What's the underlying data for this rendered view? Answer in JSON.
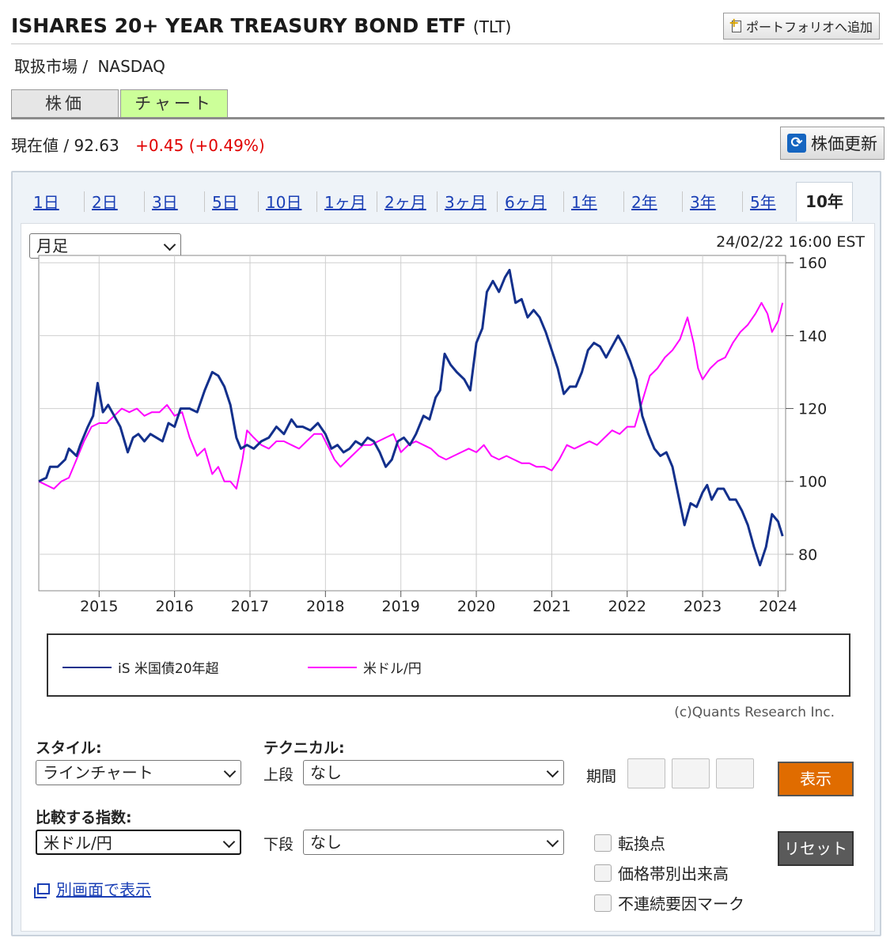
{
  "header": {
    "title": "ISHARES 20+ YEAR TREASURY BOND ETF",
    "ticker": "(TLT)",
    "portfolio_button": "ポートフォリオへ追加",
    "market_label": "取扱市場 /",
    "market_value": "NASDAQ"
  },
  "tabs": [
    {
      "label": "株価",
      "active": false
    },
    {
      "label": "チャート",
      "active": true
    }
  ],
  "quote": {
    "label": "現在値 /",
    "price": "92.63",
    "change": "+0.45",
    "change_pct": "(+0.49%)",
    "refresh_button": "株価更新"
  },
  "periods": [
    {
      "label": "1日"
    },
    {
      "label": "2日"
    },
    {
      "label": "3日"
    },
    {
      "label": "5日"
    },
    {
      "label": "10日"
    },
    {
      "label": "1ヶ月"
    },
    {
      "label": "2ヶ月"
    },
    {
      "label": "3ヶ月"
    },
    {
      "label": "6ヶ月"
    },
    {
      "label": "1年"
    },
    {
      "label": "2年"
    },
    {
      "label": "3年"
    },
    {
      "label": "5年"
    },
    {
      "label": "10年",
      "active": true
    }
  ],
  "chart_options": {
    "interval_select": "月足",
    "timestamp": "24/02/22 16:00 EST",
    "copyright": "(c)Quants Research Inc."
  },
  "chart_data": {
    "type": "line",
    "ylim": [
      70,
      162
    ],
    "y_ticks": [
      160,
      140,
      120,
      100,
      80
    ],
    "x_ticks": [
      "2015",
      "2016",
      "2017",
      "2018",
      "2019",
      "2020",
      "2021",
      "2022",
      "2023",
      "2024"
    ],
    "x_range": [
      2014.2,
      2024.1
    ],
    "legend_position": "bottom",
    "grid": true,
    "series": [
      {
        "name": "iS 米国債20年超",
        "color": "#13308c",
        "points": [
          [
            2014.2,
            100
          ],
          [
            2014.3,
            101
          ],
          [
            2014.35,
            104
          ],
          [
            2014.45,
            104
          ],
          [
            2014.55,
            106
          ],
          [
            2014.6,
            109
          ],
          [
            2014.7,
            107
          ],
          [
            2014.75,
            110
          ],
          [
            2014.85,
            115
          ],
          [
            2014.92,
            118
          ],
          [
            2014.98,
            127
          ],
          [
            2015.05,
            119
          ],
          [
            2015.12,
            121
          ],
          [
            2015.2,
            118
          ],
          [
            2015.28,
            115
          ],
          [
            2015.38,
            108
          ],
          [
            2015.45,
            112
          ],
          [
            2015.52,
            113
          ],
          [
            2015.6,
            111
          ],
          [
            2015.68,
            113
          ],
          [
            2015.76,
            112
          ],
          [
            2015.84,
            111
          ],
          [
            2015.92,
            116
          ],
          [
            2016.0,
            115
          ],
          [
            2016.08,
            120
          ],
          [
            2016.2,
            120
          ],
          [
            2016.3,
            119
          ],
          [
            2016.4,
            125
          ],
          [
            2016.5,
            130
          ],
          [
            2016.58,
            129
          ],
          [
            2016.66,
            126
          ],
          [
            2016.74,
            121
          ],
          [
            2016.82,
            112
          ],
          [
            2016.88,
            109
          ],
          [
            2016.96,
            110
          ],
          [
            2017.05,
            109
          ],
          [
            2017.15,
            111
          ],
          [
            2017.25,
            112
          ],
          [
            2017.35,
            115
          ],
          [
            2017.45,
            113
          ],
          [
            2017.55,
            117
          ],
          [
            2017.62,
            115
          ],
          [
            2017.7,
            115
          ],
          [
            2017.8,
            114
          ],
          [
            2017.9,
            116
          ],
          [
            2018.0,
            113
          ],
          [
            2018.08,
            109
          ],
          [
            2018.16,
            110
          ],
          [
            2018.24,
            108
          ],
          [
            2018.32,
            109
          ],
          [
            2018.4,
            111
          ],
          [
            2018.48,
            110
          ],
          [
            2018.56,
            112
          ],
          [
            2018.64,
            111
          ],
          [
            2018.72,
            108
          ],
          [
            2018.8,
            104
          ],
          [
            2018.88,
            106
          ],
          [
            2018.96,
            111
          ],
          [
            2019.04,
            112
          ],
          [
            2019.12,
            110
          ],
          [
            2019.2,
            113
          ],
          [
            2019.3,
            118
          ],
          [
            2019.38,
            117
          ],
          [
            2019.46,
            123
          ],
          [
            2019.52,
            125
          ],
          [
            2019.58,
            135
          ],
          [
            2019.66,
            132
          ],
          [
            2019.74,
            130
          ],
          [
            2019.84,
            128
          ],
          [
            2019.92,
            125
          ],
          [
            2020.0,
            138
          ],
          [
            2020.08,
            142
          ],
          [
            2020.14,
            152
          ],
          [
            2020.22,
            155
          ],
          [
            2020.3,
            152
          ],
          [
            2020.38,
            156
          ],
          [
            2020.44,
            158
          ],
          [
            2020.52,
            149
          ],
          [
            2020.6,
            150
          ],
          [
            2020.68,
            145
          ],
          [
            2020.76,
            147
          ],
          [
            2020.84,
            145
          ],
          [
            2020.92,
            141
          ],
          [
            2021.0,
            136
          ],
          [
            2021.08,
            131
          ],
          [
            2021.16,
            124
          ],
          [
            2021.24,
            126
          ],
          [
            2021.32,
            126
          ],
          [
            2021.4,
            130
          ],
          [
            2021.48,
            136
          ],
          [
            2021.56,
            138
          ],
          [
            2021.64,
            137
          ],
          [
            2021.72,
            134
          ],
          [
            2021.8,
            137
          ],
          [
            2021.88,
            140
          ],
          [
            2021.96,
            137
          ],
          [
            2022.04,
            133
          ],
          [
            2022.12,
            128
          ],
          [
            2022.2,
            118
          ],
          [
            2022.28,
            113
          ],
          [
            2022.36,
            109
          ],
          [
            2022.44,
            107
          ],
          [
            2022.52,
            108
          ],
          [
            2022.6,
            104
          ],
          [
            2022.68,
            96
          ],
          [
            2022.76,
            88
          ],
          [
            2022.84,
            94
          ],
          [
            2022.92,
            93
          ],
          [
            2023.0,
            97
          ],
          [
            2023.06,
            99
          ],
          [
            2023.12,
            95
          ],
          [
            2023.2,
            98
          ],
          [
            2023.28,
            98
          ],
          [
            2023.36,
            95
          ],
          [
            2023.44,
            95
          ],
          [
            2023.52,
            92
          ],
          [
            2023.6,
            88
          ],
          [
            2023.68,
            82
          ],
          [
            2023.76,
            77
          ],
          [
            2023.84,
            82
          ],
          [
            2023.92,
            91
          ],
          [
            2024.0,
            89
          ],
          [
            2024.06,
            85
          ]
        ]
      },
      {
        "name": "米ドル/円",
        "color": "#ff00ff",
        "points": [
          [
            2014.2,
            100
          ],
          [
            2014.3,
            99
          ],
          [
            2014.4,
            98
          ],
          [
            2014.5,
            100
          ],
          [
            2014.6,
            101
          ],
          [
            2014.7,
            106
          ],
          [
            2014.8,
            111
          ],
          [
            2014.9,
            115
          ],
          [
            2015.0,
            116
          ],
          [
            2015.1,
            116
          ],
          [
            2015.2,
            118
          ],
          [
            2015.3,
            120
          ],
          [
            2015.4,
            119
          ],
          [
            2015.5,
            120
          ],
          [
            2015.6,
            118
          ],
          [
            2015.7,
            119
          ],
          [
            2015.8,
            119
          ],
          [
            2015.9,
            121
          ],
          [
            2016.0,
            118
          ],
          [
            2016.1,
            119
          ],
          [
            2016.2,
            112
          ],
          [
            2016.3,
            107
          ],
          [
            2016.4,
            109
          ],
          [
            2016.5,
            102
          ],
          [
            2016.58,
            104
          ],
          [
            2016.66,
            100
          ],
          [
            2016.74,
            100
          ],
          [
            2016.82,
            98
          ],
          [
            2016.9,
            106
          ],
          [
            2016.96,
            114
          ],
          [
            2017.05,
            112
          ],
          [
            2017.15,
            110
          ],
          [
            2017.25,
            109
          ],
          [
            2017.35,
            111
          ],
          [
            2017.45,
            111
          ],
          [
            2017.55,
            110
          ],
          [
            2017.65,
            109
          ],
          [
            2017.75,
            111
          ],
          [
            2017.85,
            113
          ],
          [
            2017.95,
            113
          ],
          [
            2018.05,
            109
          ],
          [
            2018.12,
            106
          ],
          [
            2018.2,
            104
          ],
          [
            2018.3,
            106
          ],
          [
            2018.4,
            108
          ],
          [
            2018.5,
            110
          ],
          [
            2018.6,
            110
          ],
          [
            2018.7,
            111
          ],
          [
            2018.8,
            112
          ],
          [
            2018.9,
            113
          ],
          [
            2019.0,
            108
          ],
          [
            2019.1,
            110
          ],
          [
            2019.2,
            111
          ],
          [
            2019.3,
            110
          ],
          [
            2019.4,
            109
          ],
          [
            2019.5,
            107
          ],
          [
            2019.6,
            106
          ],
          [
            2019.7,
            107
          ],
          [
            2019.8,
            108
          ],
          [
            2019.9,
            109
          ],
          [
            2020.0,
            108
          ],
          [
            2020.1,
            110
          ],
          [
            2020.2,
            107
          ],
          [
            2020.3,
            106
          ],
          [
            2020.4,
            107
          ],
          [
            2020.5,
            106
          ],
          [
            2020.6,
            105
          ],
          [
            2020.7,
            105
          ],
          [
            2020.8,
            104
          ],
          [
            2020.9,
            104
          ],
          [
            2021.0,
            103
          ],
          [
            2021.1,
            106
          ],
          [
            2021.2,
            110
          ],
          [
            2021.3,
            109
          ],
          [
            2021.4,
            110
          ],
          [
            2021.5,
            111
          ],
          [
            2021.6,
            110
          ],
          [
            2021.7,
            112
          ],
          [
            2021.8,
            114
          ],
          [
            2021.9,
            113
          ],
          [
            2022.0,
            115
          ],
          [
            2022.1,
            115
          ],
          [
            2022.2,
            122
          ],
          [
            2022.3,
            129
          ],
          [
            2022.4,
            131
          ],
          [
            2022.5,
            134
          ],
          [
            2022.6,
            136
          ],
          [
            2022.7,
            139
          ],
          [
            2022.8,
            145
          ],
          [
            2022.88,
            138
          ],
          [
            2022.94,
            131
          ],
          [
            2023.0,
            128
          ],
          [
            2023.1,
            131
          ],
          [
            2023.2,
            133
          ],
          [
            2023.3,
            134
          ],
          [
            2023.4,
            138
          ],
          [
            2023.5,
            141
          ],
          [
            2023.6,
            143
          ],
          [
            2023.7,
            146
          ],
          [
            2023.78,
            149
          ],
          [
            2023.86,
            146
          ],
          [
            2023.92,
            141
          ],
          [
            2024.0,
            144
          ],
          [
            2024.06,
            149
          ]
        ]
      }
    ]
  },
  "controls": {
    "style_label": "スタイル:",
    "style_value": "ラインチャート",
    "technical_label": "テクニカル:",
    "upper_label": "上段",
    "upper_value": "なし",
    "lower_label": "下段",
    "lower_value": "なし",
    "period_label": "期間",
    "show_button": "表示",
    "compare_label": "比較する指数:",
    "compare_value": "米ドル/円",
    "reset_button": "リセット",
    "checkboxes": [
      "転換点",
      "価格帯別出来高",
      "不連続要因マーク"
    ],
    "separate_window_link": "別画面で表示"
  }
}
